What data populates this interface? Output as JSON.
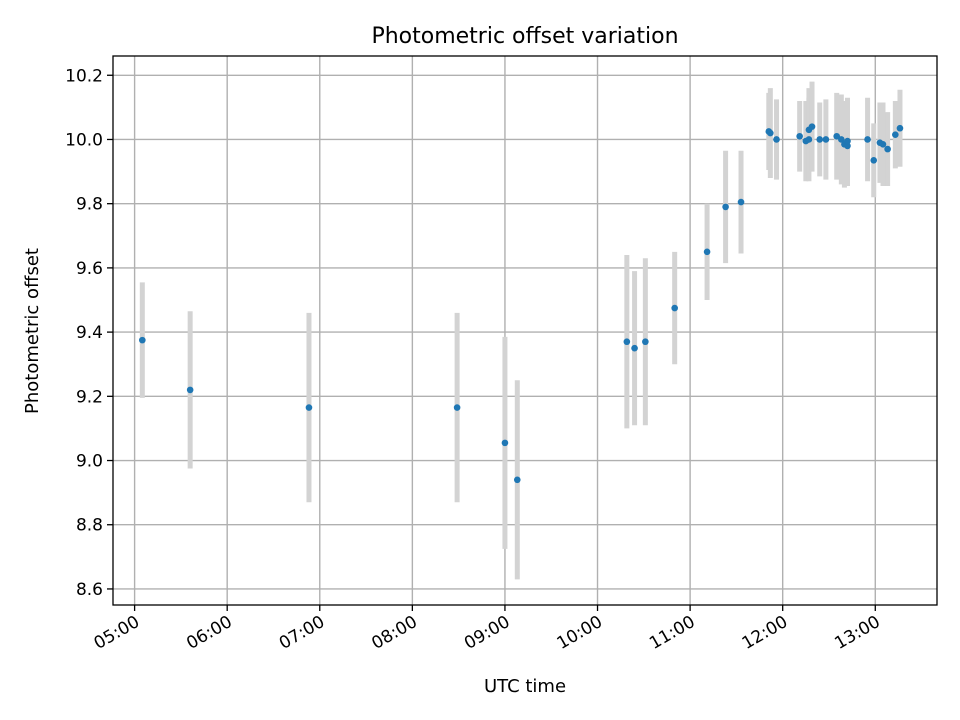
{
  "chart_data": {
    "type": "scatter",
    "title": "Photometric offset variation",
    "xlabel": "UTC time",
    "ylabel": "Photometric offset",
    "xlim": [
      "04:46",
      "13:40"
    ],
    "ylim": [
      8.55,
      10.26
    ],
    "grid": true,
    "x_ticks": [
      "05:00",
      "06:00",
      "07:00",
      "08:00",
      "09:00",
      "10:00",
      "11:00",
      "12:00",
      "13:00"
    ],
    "y_ticks": [
      "8.6",
      "8.8",
      "9.0",
      "9.2",
      "9.4",
      "9.6",
      "9.8",
      "10.0",
      "10.2"
    ],
    "colors": {
      "points": "#1f77b4",
      "errorbars": "#d3d3d3"
    },
    "points": [
      {
        "x": "05:05",
        "y": 9.375,
        "err": 0.18
      },
      {
        "x": "05:36",
        "y": 9.22,
        "err": 0.245
      },
      {
        "x": "06:53",
        "y": 9.165,
        "err": 0.295
      },
      {
        "x": "08:29",
        "y": 9.165,
        "err": 0.295
      },
      {
        "x": "09:00",
        "y": 9.055,
        "err": 0.33
      },
      {
        "x": "09:08",
        "y": 8.94,
        "err": 0.31
      },
      {
        "x": "10:19",
        "y": 9.37,
        "err": 0.27
      },
      {
        "x": "10:24",
        "y": 9.35,
        "err": 0.24
      },
      {
        "x": "10:31",
        "y": 9.37,
        "err": 0.26
      },
      {
        "x": "10:50",
        "y": 9.475,
        "err": 0.175
      },
      {
        "x": "11:11",
        "y": 9.65,
        "err": 0.15
      },
      {
        "x": "11:23",
        "y": 9.79,
        "err": 0.175
      },
      {
        "x": "11:33",
        "y": 9.805,
        "err": 0.16
      },
      {
        "x": "11:51",
        "y": 10.025,
        "err": 0.12
      },
      {
        "x": "11:52",
        "y": 10.02,
        "err": 0.14
      },
      {
        "x": "11:56",
        "y": 10.0,
        "err": 0.125
      },
      {
        "x": "12:11",
        "y": 10.01,
        "err": 0.11
      },
      {
        "x": "12:15",
        "y": 9.995,
        "err": 0.125
      },
      {
        "x": "12:17",
        "y": 10.03,
        "err": 0.13
      },
      {
        "x": "12:17",
        "y": 10.0,
        "err": 0.13
      },
      {
        "x": "12:19",
        "y": 10.04,
        "err": 0.14
      },
      {
        "x": "12:24",
        "y": 10.0,
        "err": 0.115
      },
      {
        "x": "12:28",
        "y": 10.0,
        "err": 0.125
      },
      {
        "x": "12:35",
        "y": 10.01,
        "err": 0.135
      },
      {
        "x": "12:38",
        "y": 10.0,
        "err": 0.14
      },
      {
        "x": "12:40",
        "y": 9.985,
        "err": 0.135
      },
      {
        "x": "12:42",
        "y": 9.98,
        "err": 0.125
      },
      {
        "x": "12:42",
        "y": 9.995,
        "err": 0.135
      },
      {
        "x": "12:55",
        "y": 10.0,
        "err": 0.13
      },
      {
        "x": "12:59",
        "y": 9.935,
        "err": 0.115
      },
      {
        "x": "13:03",
        "y": 9.99,
        "err": 0.125
      },
      {
        "x": "13:05",
        "y": 9.985,
        "err": 0.13
      },
      {
        "x": "13:08",
        "y": 9.97,
        "err": 0.115
      },
      {
        "x": "13:13",
        "y": 10.015,
        "err": 0.105
      },
      {
        "x": "13:16",
        "y": 10.035,
        "err": 0.12
      }
    ]
  }
}
